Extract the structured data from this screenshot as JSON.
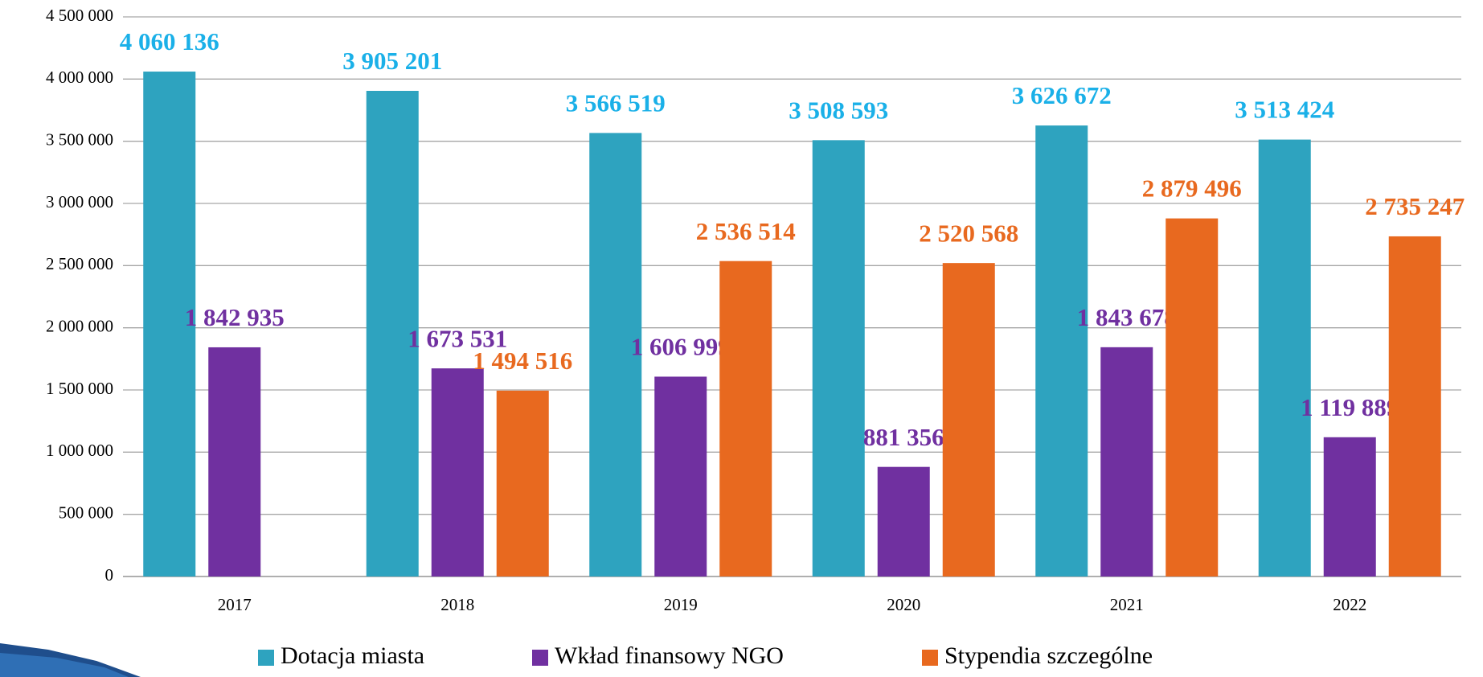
{
  "chart_data": {
    "type": "bar",
    "categories": [
      "2017",
      "2018",
      "2019",
      "2020",
      "2021",
      "2022"
    ],
    "series": [
      {
        "name": "Dotacja miasta",
        "color": "#2ea3bf",
        "label_color": "#1ab0e8",
        "values": [
          4060136,
          3905201,
          3566519,
          3508593,
          3626672,
          3513424
        ],
        "value_labels": [
          "4 060 136",
          "3 905 201",
          "3 566 519",
          "3 508 593",
          "3 626 672",
          "3 513 424"
        ]
      },
      {
        "name": "Wkład finansowy NGO",
        "color": "#7030a0",
        "label_color": "#7030a0",
        "values": [
          1842935,
          1673531,
          1606999,
          881356,
          1843678,
          1119889
        ],
        "value_labels": [
          "1 842 935",
          "1 673 531",
          "1 606 999",
          "881 356",
          "1 843 678",
          "1 119 889"
        ]
      },
      {
        "name": "Stypendia szczególne",
        "color": "#e8691f",
        "label_color": "#e8691f",
        "values": [
          null,
          1494516,
          2536514,
          2520568,
          2879496,
          2735247
        ],
        "value_labels": [
          null,
          "1 494 516",
          "2 536 514",
          "2 520 568",
          "2 879 496",
          "2 735 247"
        ]
      }
    ],
    "ylim": [
      0,
      4500000
    ],
    "yticks": [
      0,
      {
        "value": 500000,
        "label": "500 000"
      },
      {
        "value": 1000000,
        "label": "1 000 000"
      },
      {
        "value": 1500000,
        "label": "1 500 000"
      },
      {
        "value": 2000000,
        "label": "2 000 000"
      },
      {
        "value": 2500000,
        "label": "2 500 000"
      },
      {
        "value": 3000000,
        "label": "3 000 000"
      },
      {
        "value": 3500000,
        "label": "3 500 000"
      },
      {
        "value": 4000000,
        "label": "4 000 000"
      },
      {
        "value": 4500000,
        "label": "4 500 000"
      }
    ],
    "grid": true,
    "legend": "bottom"
  }
}
